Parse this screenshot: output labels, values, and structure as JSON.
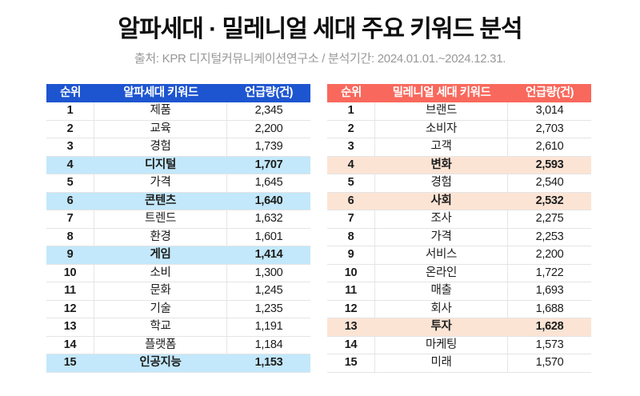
{
  "header": {
    "title": "알파세대 · 밀레니얼 세대 주요 키워드 분석",
    "subtitle": "출처: KPR 디지털커뮤니케이션연구소 / 분석기간: 2024.01.01.~2024.12.31."
  },
  "colors": {
    "alpha_accent": "#1d55d0",
    "alpha_highlight": "#c3e8fb",
    "millennial_accent": "#f9685c",
    "millennial_highlight": "#fce4d5",
    "row_border": "#e4e4e4",
    "subtitle_gray": "#989898"
  },
  "tables": [
    {
      "id": "alpha",
      "accent": "#1d55d0",
      "highlight": "#c3e8fb",
      "columns": [
        "순위",
        "알파세대 키워드",
        "언급량(건)"
      ],
      "rows": [
        {
          "rank": "1",
          "keyword": "제품",
          "count": "2,345",
          "highlighted": false
        },
        {
          "rank": "2",
          "keyword": "교육",
          "count": "2,200",
          "highlighted": false
        },
        {
          "rank": "3",
          "keyword": "경험",
          "count": "1,739",
          "highlighted": false
        },
        {
          "rank": "4",
          "keyword": "디지털",
          "count": "1,707",
          "highlighted": true
        },
        {
          "rank": "5",
          "keyword": "가격",
          "count": "1,645",
          "highlighted": false
        },
        {
          "rank": "6",
          "keyword": "콘텐츠",
          "count": "1,640",
          "highlighted": true
        },
        {
          "rank": "7",
          "keyword": "트렌드",
          "count": "1,632",
          "highlighted": false
        },
        {
          "rank": "8",
          "keyword": "환경",
          "count": "1,601",
          "highlighted": false
        },
        {
          "rank": "9",
          "keyword": "게임",
          "count": "1,414",
          "highlighted": true
        },
        {
          "rank": "10",
          "keyword": "소비",
          "count": "1,300",
          "highlighted": false
        },
        {
          "rank": "11",
          "keyword": "문화",
          "count": "1,245",
          "highlighted": false
        },
        {
          "rank": "12",
          "keyword": "기술",
          "count": "1,235",
          "highlighted": false
        },
        {
          "rank": "13",
          "keyword": "학교",
          "count": "1,191",
          "highlighted": false
        },
        {
          "rank": "14",
          "keyword": "플랫폼",
          "count": "1,184",
          "highlighted": false
        },
        {
          "rank": "15",
          "keyword": "인공지능",
          "count": "1,153",
          "highlighted": true
        }
      ]
    },
    {
      "id": "millennial",
      "accent": "#f9685c",
      "highlight": "#fce4d5",
      "columns": [
        "순위",
        "밀레니얼 세대 키워드",
        "언급량(건)"
      ],
      "rows": [
        {
          "rank": "1",
          "keyword": "브랜드",
          "count": "3,014",
          "highlighted": false
        },
        {
          "rank": "2",
          "keyword": "소비자",
          "count": "2,703",
          "highlighted": false
        },
        {
          "rank": "3",
          "keyword": "고객",
          "count": "2,610",
          "highlighted": false
        },
        {
          "rank": "4",
          "keyword": "변화",
          "count": "2,593",
          "highlighted": true
        },
        {
          "rank": "5",
          "keyword": "경험",
          "count": "2,540",
          "highlighted": false
        },
        {
          "rank": "6",
          "keyword": "사회",
          "count": "2,532",
          "highlighted": true
        },
        {
          "rank": "7",
          "keyword": "조사",
          "count": "2,275",
          "highlighted": false
        },
        {
          "rank": "8",
          "keyword": "가격",
          "count": "2,253",
          "highlighted": false
        },
        {
          "rank": "9",
          "keyword": "서비스",
          "count": "2,200",
          "highlighted": false
        },
        {
          "rank": "10",
          "keyword": "온라인",
          "count": "1,722",
          "highlighted": false
        },
        {
          "rank": "11",
          "keyword": "매출",
          "count": "1,693",
          "highlighted": false
        },
        {
          "rank": "12",
          "keyword": "회사",
          "count": "1,688",
          "highlighted": false
        },
        {
          "rank": "13",
          "keyword": "투자",
          "count": "1,628",
          "highlighted": true
        },
        {
          "rank": "14",
          "keyword": "마케팅",
          "count": "1,573",
          "highlighted": false
        },
        {
          "rank": "15",
          "keyword": "미래",
          "count": "1,570",
          "highlighted": false
        }
      ]
    }
  ],
  "chart_data": [
    {
      "type": "table",
      "title": "알파세대 키워드",
      "columns": [
        "순위",
        "알파세대 키워드",
        "언급량(건)"
      ],
      "rows": [
        [
          1,
          "제품",
          2345
        ],
        [
          2,
          "교육",
          2200
        ],
        [
          3,
          "경험",
          1739
        ],
        [
          4,
          "디지털",
          1707
        ],
        [
          5,
          "가격",
          1645
        ],
        [
          6,
          "콘텐츠",
          1640
        ],
        [
          7,
          "트렌드",
          1632
        ],
        [
          8,
          "환경",
          1601
        ],
        [
          9,
          "게임",
          1414
        ],
        [
          10,
          "소비",
          1300
        ],
        [
          11,
          "문화",
          1245
        ],
        [
          12,
          "기술",
          1235
        ],
        [
          13,
          "학교",
          1191
        ],
        [
          14,
          "플랫폼",
          1184
        ],
        [
          15,
          "인공지능",
          1153
        ]
      ],
      "highlighted_ranks": [
        4,
        6,
        9,
        15
      ]
    },
    {
      "type": "table",
      "title": "밀레니얼 세대 키워드",
      "columns": [
        "순위",
        "밀레니얼 세대 키워드",
        "언급량(건)"
      ],
      "rows": [
        [
          1,
          "브랜드",
          3014
        ],
        [
          2,
          "소비자",
          2703
        ],
        [
          3,
          "고객",
          2610
        ],
        [
          4,
          "변화",
          2593
        ],
        [
          5,
          "경험",
          2540
        ],
        [
          6,
          "사회",
          2532
        ],
        [
          7,
          "조사",
          2275
        ],
        [
          8,
          "가격",
          2253
        ],
        [
          9,
          "서비스",
          2200
        ],
        [
          10,
          "온라인",
          1722
        ],
        [
          11,
          "매출",
          1693
        ],
        [
          12,
          "회사",
          1688
        ],
        [
          13,
          "투자",
          1628
        ],
        [
          14,
          "마케팅",
          1573
        ],
        [
          15,
          "미래",
          1570
        ]
      ],
      "highlighted_ranks": [
        4,
        6,
        13
      ]
    }
  ]
}
